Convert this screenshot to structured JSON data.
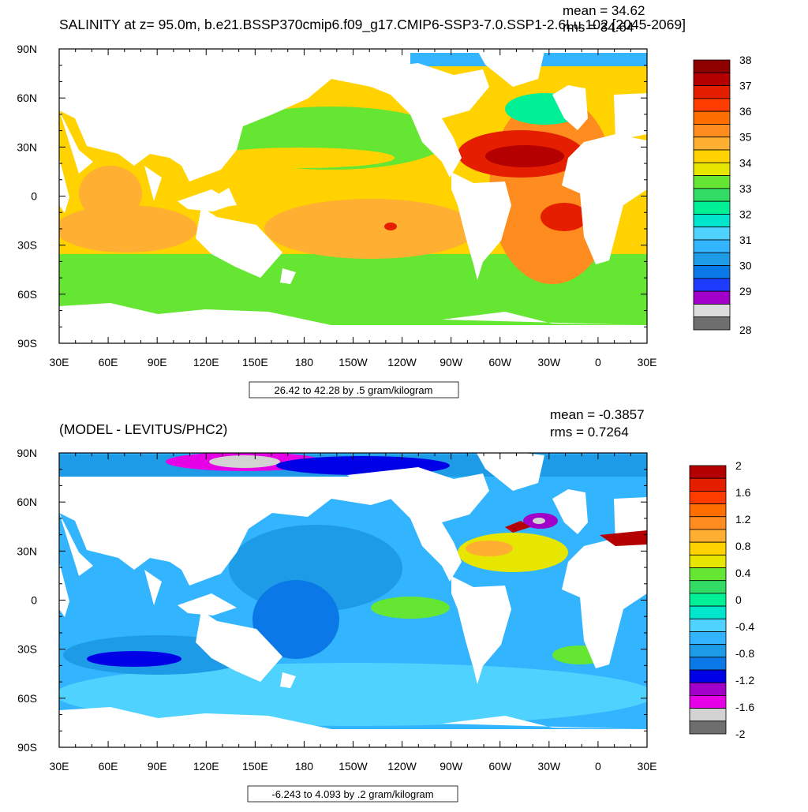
{
  "top": {
    "title": "SALINITY at z=  95.0m, b.e21.BSSP370cmip6.f09_g17.CMIP6-SSP3-7.0.SSP1-2.6Lu.102 [2045-2069]",
    "stats": {
      "mean": "mean = 34.62",
      "rms": "rms = 34.64"
    },
    "range_label": "26.42 to 42.28 by .5 gram/kilogram",
    "colorbar": {
      "colors": [
        "#dcdcdc",
        "#a000c8",
        "#1e3cff",
        "#0a78e6",
        "#1e9be6",
        "#33b4ff",
        "#50d2ff",
        "#00e6cd",
        "#00f096",
        "#32dc64",
        "#64e632",
        "#e6e600",
        "#ffd200",
        "#ffaf32",
        "#ff8c1e",
        "#ff6e00",
        "#ff3c00",
        "#e61e00",
        "#b40000",
        "#8c0000"
      ],
      "bottom_color": "#6e6e6e",
      "labels": [
        "28",
        "29",
        "30",
        "31",
        "32",
        "33",
        "34",
        "35",
        "36",
        "37",
        "38"
      ]
    }
  },
  "bottom": {
    "title": "(MODEL - LEVITUS/PHC2)",
    "stats": {
      "mean": "mean = -0.3857",
      "rms": "rms = 0.7264"
    },
    "range_label": "-6.243 to 4.093 by .2 gram/kilogram",
    "colorbar": {
      "colors": [
        "#6e6e6e",
        "#d2d2d2",
        "#e600e6",
        "#a000c8",
        "#0000e6",
        "#0a78e6",
        "#1e9be6",
        "#33b4ff",
        "#50d2ff",
        "#00e6cd",
        "#00f096",
        "#32dc64",
        "#64e632",
        "#e6e600",
        "#ffd200",
        "#ffaf32",
        "#ff8c1e",
        "#ff6e00",
        "#ff3c00",
        "#e61e00",
        "#b40000"
      ],
      "labels": [
        "2",
        "1.6",
        "1.2",
        "0.8",
        "0.4",
        "0",
        "-0.4",
        "-0.8",
        "-1.2",
        "-1.6",
        "-2"
      ]
    }
  },
  "axes": {
    "lat_labels": [
      "90N",
      "60N",
      "30N",
      "0",
      "30S",
      "60S",
      "90S"
    ],
    "lon_labels": [
      "30E",
      "60E",
      "90E",
      "120E",
      "150E",
      "180",
      "150W",
      "120W",
      "90W",
      "60W",
      "30W",
      "0",
      "30E"
    ]
  },
  "map_colors": {
    "land": "#ffffff",
    "top": {
      "background": "#ffd200",
      "pacific_eq": "#ffaf32",
      "north_pacific": "#64e632",
      "south_ocean": "#64e632",
      "atlantic_north": "#ff8c1e",
      "atlantic_subtrop": "#e61e00",
      "atlantic_max": "#b40000",
      "arctic": "#33b4ff",
      "arctic_center": "#1e9be6",
      "pacific_max": "#e61e00",
      "indian_north": "#ff8c1e",
      "sub_polar": "#00f096"
    },
    "bottom": {
      "background": "#33b4ff",
      "light": "#50d2ff",
      "mid": "#1e9be6",
      "dark": "#0a78e6",
      "deep": "#0000e6",
      "green": "#64e632",
      "yellow": "#e6e600",
      "orange": "#ffaf32",
      "red": "#b40000",
      "purple": "#a000c8",
      "magenta": "#e600e6",
      "grey": "#d2d2d2"
    }
  }
}
